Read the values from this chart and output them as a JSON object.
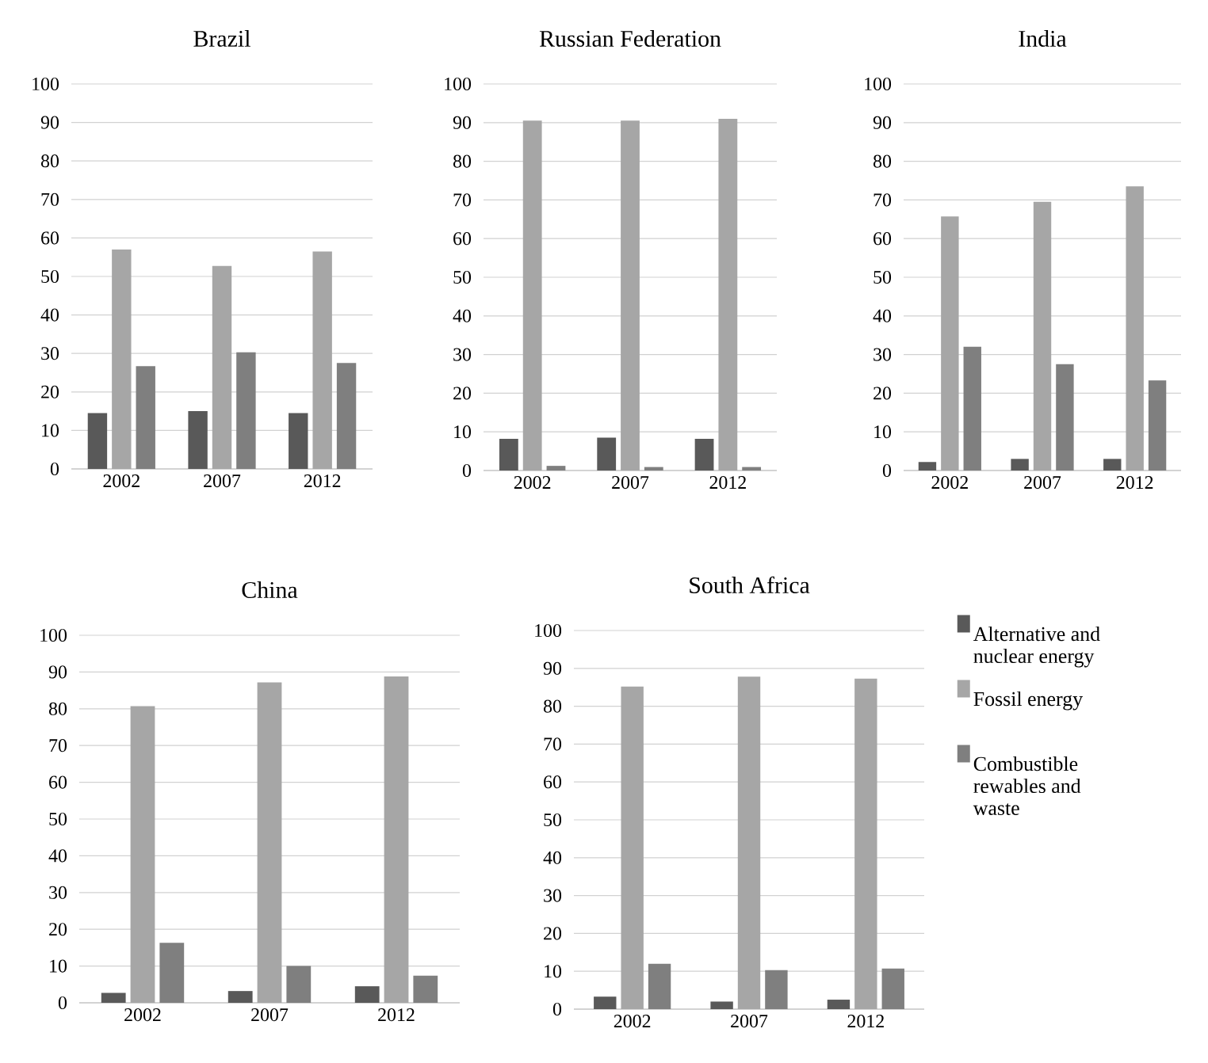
{
  "chart_data": [
    {
      "type": "bar",
      "title": "Brazil",
      "categories": [
        "2002",
        "2007",
        "2012"
      ],
      "ylim": [
        0,
        100
      ],
      "yticks": [
        0,
        10,
        20,
        30,
        40,
        50,
        60,
        70,
        80,
        90,
        100
      ],
      "grid": "y",
      "series": [
        {
          "color": "#595959",
          "values": [
            14.5,
            15,
            14.5
          ]
        },
        {
          "color": "#a6a6a6",
          "values": [
            57,
            52.7,
            56.5
          ]
        },
        {
          "color": "#7f7f7f",
          "values": [
            26.7,
            30.3,
            27.5
          ]
        }
      ]
    },
    {
      "type": "bar",
      "title": "Russian Federation",
      "categories": [
        "2002",
        "2007",
        "2012"
      ],
      "ylim": [
        0,
        100
      ],
      "yticks": [
        0,
        10,
        20,
        30,
        40,
        50,
        60,
        70,
        80,
        90,
        100
      ],
      "grid": "y",
      "series": [
        {
          "color": "#595959",
          "values": [
            8.2,
            8.5,
            8.2
          ]
        },
        {
          "color": "#a6a6a6",
          "values": [
            90.5,
            90.5,
            91
          ]
        },
        {
          "color": "#7f7f7f",
          "values": [
            1.2,
            0.9,
            0.9
          ]
        }
      ]
    },
    {
      "type": "bar",
      "title": "India",
      "categories": [
        "2002",
        "2007",
        "2012"
      ],
      "ylim": [
        0,
        100
      ],
      "yticks": [
        0,
        10,
        20,
        30,
        40,
        50,
        60,
        70,
        80,
        90,
        100
      ],
      "grid": "y",
      "series": [
        {
          "color": "#595959",
          "values": [
            2.2,
            3,
            3
          ]
        },
        {
          "color": "#a6a6a6",
          "values": [
            65.7,
            69.5,
            73.5
          ]
        },
        {
          "color": "#7f7f7f",
          "values": [
            32,
            27.5,
            23.3
          ]
        }
      ]
    },
    {
      "type": "bar",
      "title": "China",
      "categories": [
        "2002",
        "2007",
        "2012"
      ],
      "ylim": [
        0,
        100
      ],
      "yticks": [
        0,
        10,
        20,
        30,
        40,
        50,
        60,
        70,
        80,
        90,
        100
      ],
      "grid": "y",
      "series": [
        {
          "color": "#595959",
          "values": [
            2.7,
            3.2,
            4.5
          ]
        },
        {
          "color": "#a6a6a6",
          "values": [
            80.7,
            87.2,
            88.8
          ]
        },
        {
          "color": "#7f7f7f",
          "values": [
            16.3,
            10,
            7.4
          ]
        }
      ]
    },
    {
      "type": "bar",
      "title": "South Africa",
      "categories": [
        "2002",
        "2007",
        "2012"
      ],
      "ylim": [
        0,
        100
      ],
      "yticks": [
        0,
        10,
        20,
        30,
        40,
        50,
        60,
        70,
        80,
        90,
        100
      ],
      "grid": "y",
      "legend": "right",
      "series": [
        {
          "name": "Alternative and nuclear energy",
          "color": "#595959",
          "values": [
            3.3,
            2,
            2.5
          ]
        },
        {
          "name": "Fossil energy",
          "color": "#a6a6a6",
          "values": [
            85.2,
            87.8,
            87.3
          ]
        },
        {
          "name": "Combustible rewables and waste",
          "color": "#7f7f7f",
          "values": [
            12,
            10.3,
            10.7
          ]
        }
      ]
    }
  ]
}
